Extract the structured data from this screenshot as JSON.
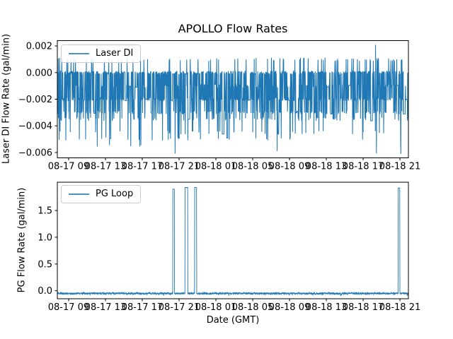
{
  "figure": {
    "background": "#ffffff",
    "accent_color": "#1f77b4",
    "frame_color": "#000000"
  },
  "chart_data": [
    {
      "type": "line",
      "subplot": "top",
      "title": "APOLLO Flow Rates",
      "ylabel": "Laser DI Flow Rate (gal/min)",
      "series": [
        {
          "name": "Laser DI",
          "color": "#1f77b4"
        }
      ],
      "legend": {
        "label": "Laser DI",
        "loc": "upper left"
      },
      "ylim": [
        -0.0064,
        0.0024
      ],
      "yticks": [
        0.002,
        0,
        -0.002,
        -0.004,
        -0.006
      ],
      "ytick_labels": [
        "0.002",
        "0.000",
        "−0.002",
        "−0.004",
        "−0.006"
      ],
      "xlim_hours": [
        -1.23,
        36.92
      ],
      "xticks_hours": [
        0,
        4,
        8,
        12,
        16,
        20,
        24,
        28,
        32,
        36
      ],
      "xtick_labels": [
        "08-17 09",
        "08-17 13",
        "08-17 17",
        "08-17 21",
        "08-18 01",
        "08-18 05",
        "08-18 09",
        "08-18 13",
        "08-18 17",
        "08-18 21"
      ],
      "grid": false,
      "signal": {
        "description": "quantized noisy flow oscillating mostly between 0.000 and -0.0035 gal/min, frequent up-spikes to 0.001, rare to 0.002, down-spikes to -0.0045/-0.005, rare -0.006",
        "samples": 1900,
        "seed": 20170817,
        "jitter": 0.00012,
        "levels": [
          {
            "value": 0.0,
            "p": 0.2995
          },
          {
            "value": -0.001,
            "p": 0.135
          },
          {
            "value": -0.002,
            "p": 0.28
          },
          {
            "value": -0.003,
            "p": 0.13
          },
          {
            "value": -0.0035,
            "p": 0.065
          },
          {
            "value": 0.001,
            "p": 0.042
          },
          {
            "value": 0.002,
            "p": 0.003
          },
          {
            "value": -0.0045,
            "p": 0.022
          },
          {
            "value": -0.005,
            "p": 0.016
          },
          {
            "value": -0.0055,
            "p": 0.004
          },
          {
            "value": -0.006,
            "p": 0.0015
          }
        ]
      }
    },
    {
      "type": "line",
      "subplot": "bottom",
      "ylabel": "PG Flow Rate (gal/min)",
      "xlabel": "Date (GMT)",
      "series": [
        {
          "name": "PG Loop",
          "color": "#1f77b4"
        }
      ],
      "legend": {
        "label": "PG Loop",
        "loc": "upper left"
      },
      "ylim": [
        -0.149,
        2.029
      ],
      "yticks": [
        0,
        0.5,
        1.0,
        1.5
      ],
      "ytick_labels": [
        "0.0",
        "0.5",
        "1.0",
        "1.5"
      ],
      "xlim_hours": [
        -1.23,
        36.92
      ],
      "xticks_hours": [
        0,
        4,
        8,
        12,
        16,
        20,
        24,
        28,
        32,
        36
      ],
      "xtick_labels": [
        "08-17 09",
        "08-17 13",
        "08-17 17",
        "08-17 21",
        "08-18 01",
        "08-18 05",
        "08-18 09",
        "08-18 13",
        "08-18 17",
        "08-18 21"
      ],
      "grid": false,
      "signal": {
        "description": "flat baseline near -0.05 gal/min with four brief spikes to ~1.9 gal/min",
        "samples": 1900,
        "seed": 90210,
        "baseline": -0.05,
        "noise": 0.018,
        "spikes": [
          {
            "t_hours": 11.4,
            "width_hours": 0.18,
            "peak": 1.9
          },
          {
            "t_hours": 12.8,
            "width_hours": 0.3,
            "peak": 1.93
          },
          {
            "t_hours": 13.8,
            "width_hours": 0.22,
            "peak": 1.93
          },
          {
            "t_hours": 35.9,
            "width_hours": 0.18,
            "peak": 1.92
          }
        ]
      }
    }
  ]
}
